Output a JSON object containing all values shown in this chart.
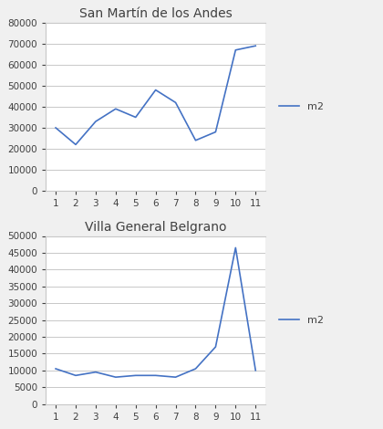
{
  "chart1": {
    "title": "San Martín de los Andes",
    "x": [
      1,
      2,
      3,
      4,
      5,
      6,
      7,
      8,
      9,
      10,
      11
    ],
    "y": [
      30000,
      22000,
      33000,
      39000,
      35000,
      48000,
      42000,
      24000,
      28000,
      67000,
      69000
    ],
    "ylim": [
      0,
      80000
    ],
    "yticks": [
      0,
      10000,
      20000,
      30000,
      40000,
      50000,
      60000,
      70000,
      80000
    ],
    "line_color": "#4472C4",
    "legend_label": "m2"
  },
  "chart2": {
    "title": "Villa General Belgrano",
    "x": [
      1,
      2,
      3,
      4,
      5,
      6,
      7,
      8,
      9,
      10,
      11
    ],
    "y": [
      10500,
      8500,
      9500,
      8000,
      8500,
      8500,
      8000,
      10500,
      17000,
      46500,
      10000
    ],
    "ylim": [
      0,
      50000
    ],
    "yticks": [
      0,
      5000,
      10000,
      15000,
      20000,
      25000,
      30000,
      35000,
      40000,
      45000,
      50000
    ],
    "line_color": "#4472C4",
    "legend_label": "m2"
  },
  "background_color": "#f0f0f0",
  "plot_bg_color": "#ffffff",
  "grid_color": "#c8c8c8",
  "spine_color": "#c8c8c8",
  "font_color": "#404040",
  "title_fontsize": 10,
  "tick_fontsize": 7.5,
  "legend_fontsize": 8
}
